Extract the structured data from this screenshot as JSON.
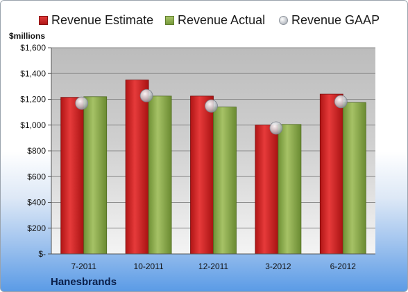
{
  "chart_data": {
    "type": "bar",
    "units_label": "$millions",
    "company": "Hanesbrands",
    "categories": [
      "7-2011",
      "10-2011",
      "12-2011",
      "3-2012",
      "6-2012"
    ],
    "series": [
      {
        "name": "Revenue Estimate",
        "kind": "bar",
        "color": "#d42a2a",
        "values": [
          1215,
          1350,
          1225,
          1000,
          1240
        ]
      },
      {
        "name": "Revenue Actual",
        "kind": "bar",
        "color": "#8fb04d",
        "values": [
          1220,
          1225,
          1140,
          1005,
          1175
        ]
      },
      {
        "name": "Revenue GAAP",
        "kind": "marker",
        "color": "#c5c9cf",
        "values": [
          1170,
          1228,
          1148,
          977,
          1182
        ]
      }
    ],
    "yticks": [
      0,
      200,
      400,
      600,
      800,
      1000,
      1200,
      1400,
      1600
    ],
    "ytick_labels": [
      "$-",
      "$200",
      "$400",
      "$600",
      "$800",
      "$1,000",
      "$1,200",
      "$1,400",
      "$1,600"
    ],
    "ylim": [
      0,
      1600
    ],
    "grid": true,
    "legend_position": "top"
  }
}
